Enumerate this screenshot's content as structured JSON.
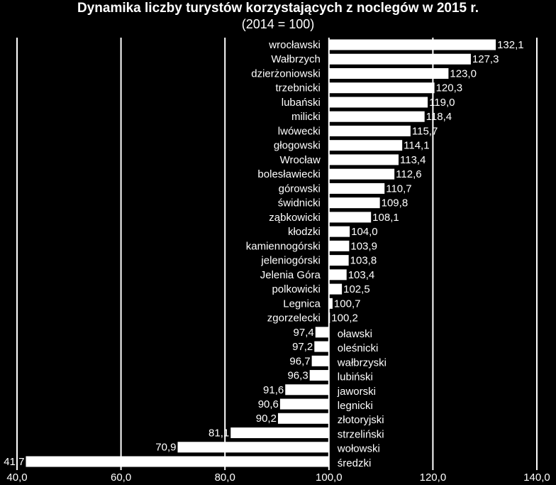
{
  "chart_data": {
    "type": "hbar",
    "title": "Dynamika liczby turystów korzystających z noclegów w 2015 r.",
    "subtitle": "(2014 = 100)",
    "categories": [
      "wrocławski",
      "Wałbrzych",
      "dzierżoniowski",
      "trzebnicki",
      "lubański",
      "milicki",
      "lwówecki",
      "głogowski",
      "Wrocław",
      "bolesławiecki",
      "górowski",
      "świdnicki",
      "ząbkowicki",
      "kłodzki",
      "kamiennogórski",
      "jeleniogórski",
      "Jelenia Góra",
      "polkowicki",
      "Legnica",
      "zgorzelecki",
      "oławski",
      "oleśnicki",
      "wałbrzyski",
      "lubiński",
      "jaworski",
      "legnicki",
      "złotoryjski",
      "strzeliński",
      "wołowski",
      "średzki"
    ],
    "values": [
      132.1,
      127.3,
      123.0,
      120.3,
      119.0,
      118.4,
      115.7,
      114.1,
      113.4,
      112.6,
      110.7,
      109.8,
      108.1,
      104.0,
      103.9,
      103.8,
      103.4,
      102.5,
      100.7,
      100.2,
      97.4,
      97.2,
      96.7,
      96.3,
      91.6,
      90.6,
      90.2,
      81.1,
      70.9,
      41.7
    ],
    "value_labels": [
      "132,1",
      "127,3",
      "123,0",
      "120,3",
      "119,0",
      "118,4",
      "115,7",
      "114,1",
      "113,4",
      "112,6",
      "110,7",
      "109,8",
      "108,1",
      "104,0",
      "103,9",
      "103,8",
      "103,4",
      "102,5",
      "100,7",
      "100,2",
      "97,4",
      "97,2",
      "96,7",
      "96,3",
      "91,6",
      "90,6",
      "90,2",
      "81,1",
      "70,9",
      "41,7"
    ],
    "color": "#ffffff",
    "baseline": 100,
    "xlim": [
      40,
      140
    ],
    "xticks": [
      {
        "value": 40,
        "label": "40,0"
      },
      {
        "value": 60,
        "label": "60,0"
      },
      {
        "value": 80,
        "label": "80,0"
      },
      {
        "value": 100,
        "label": "100,0"
      },
      {
        "value": 120,
        "label": "120,0"
      },
      {
        "value": 140,
        "label": "140,0"
      }
    ],
    "grid": true
  }
}
